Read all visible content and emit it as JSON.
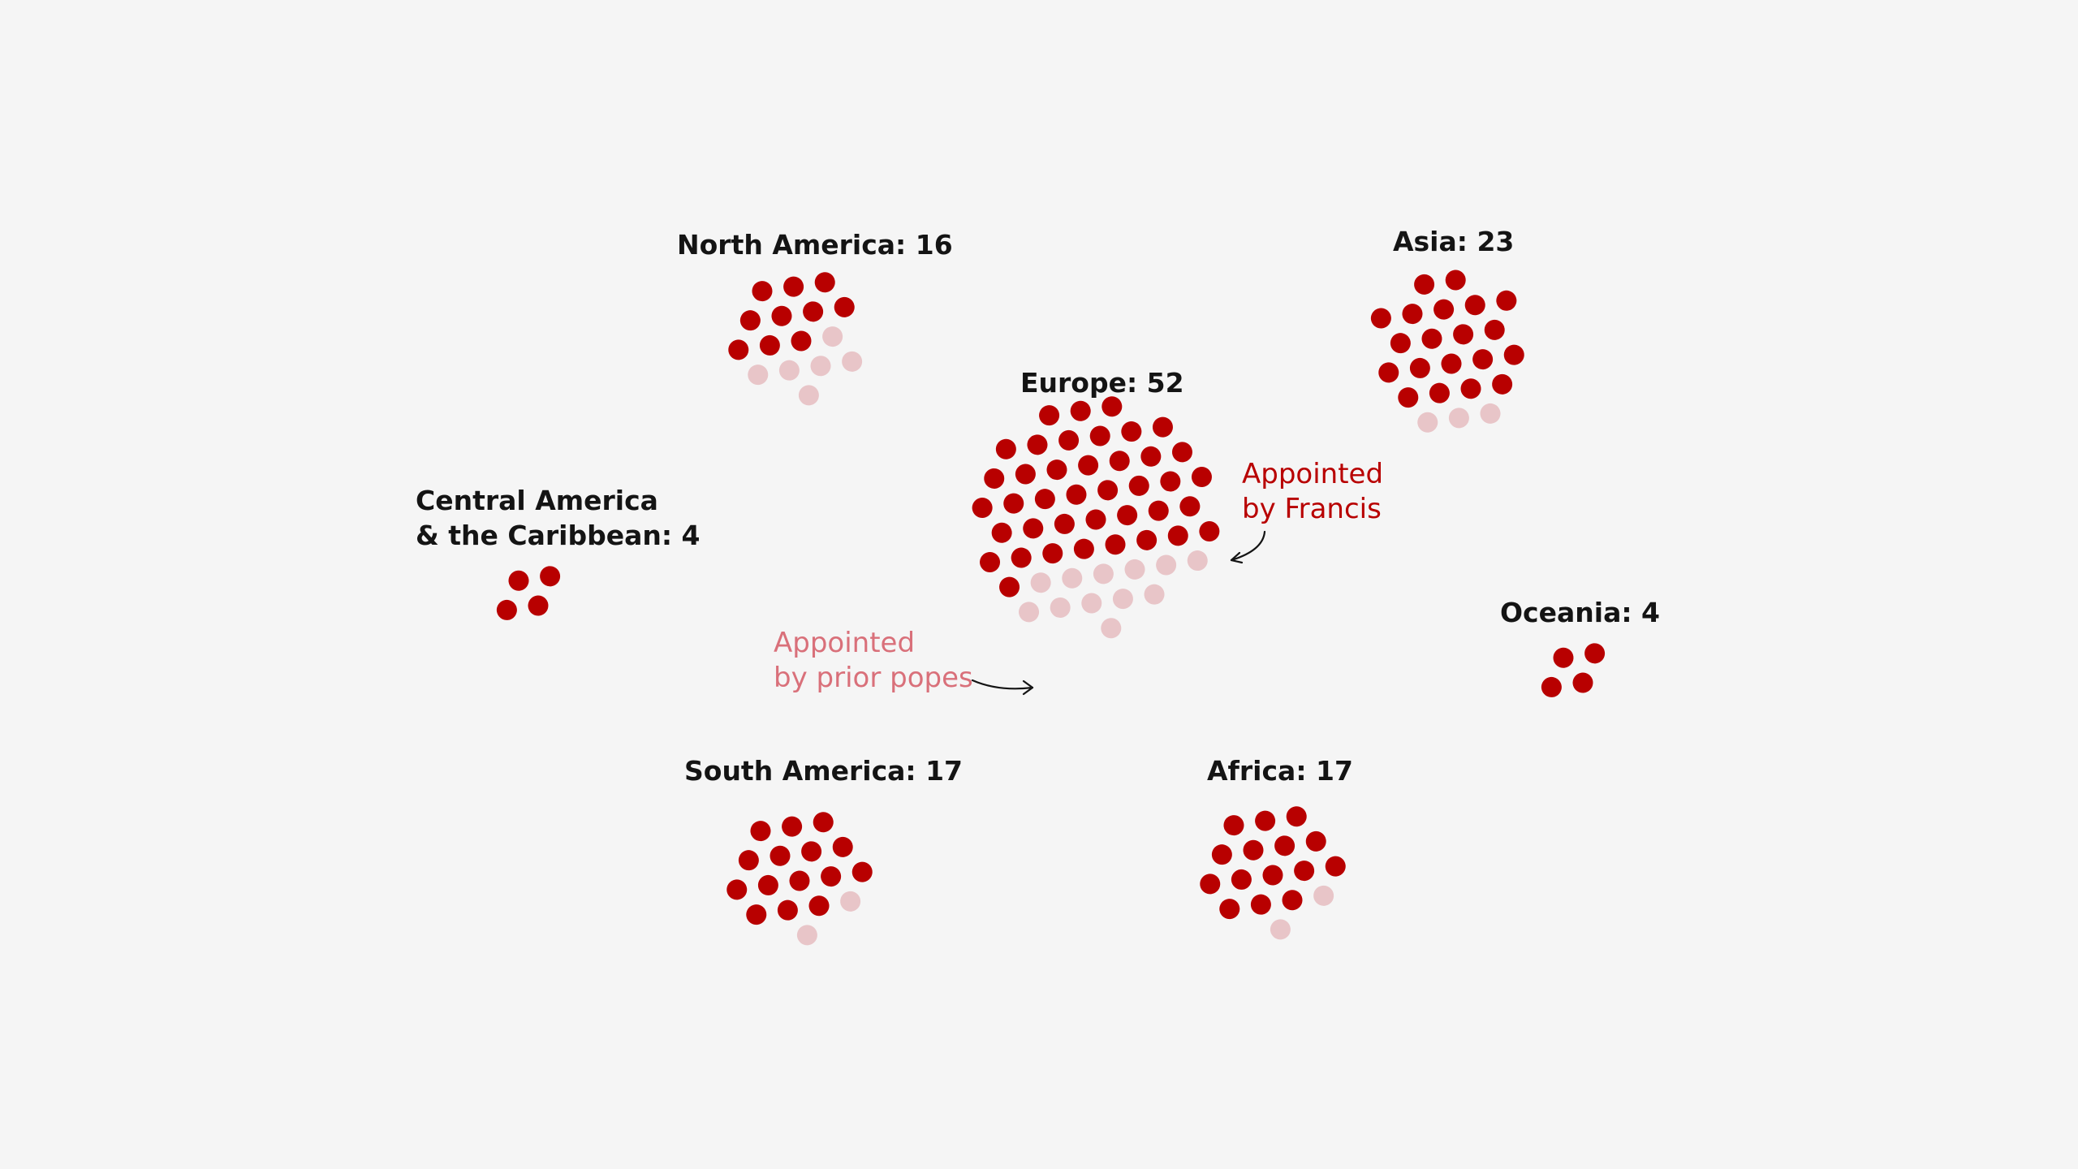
{
  "colors": {
    "background": "#f5f5f5",
    "francis": "#b80000",
    "prior": "#e8c5c8",
    "label": "#141414",
    "annotation_francis": "#b80000",
    "annotation_prior": "#d9707a",
    "arrow": "#141414"
  },
  "chart_data": {
    "type": "dot-cluster",
    "series": [
      {
        "name": "Appointed by Francis",
        "color": "#b80000"
      },
      {
        "name": "Appointed by prior popes",
        "color": "#e8c5c8"
      }
    ],
    "regions": [
      {
        "name": "North America",
        "label": "North America: 16",
        "total": 16,
        "by_francis": 10,
        "by_prior": 6
      },
      {
        "name": "Asia",
        "label": "Asia: 23",
        "total": 23,
        "by_francis": 20,
        "by_prior": 3
      },
      {
        "name": "Europe",
        "label": "Europe: 52",
        "total": 52,
        "by_francis": 40,
        "by_prior": 12
      },
      {
        "name": "Central America & the Caribbean",
        "label_lines": [
          "Central America",
          "& the Caribbean: 4"
        ],
        "total": 4,
        "by_francis": 4,
        "by_prior": 0
      },
      {
        "name": "Oceania",
        "label": "Oceania: 4",
        "total": 4,
        "by_francis": 4,
        "by_prior": 0
      },
      {
        "name": "South America",
        "label": "South America: 17",
        "total": 17,
        "by_francis": 15,
        "by_prior": 2
      },
      {
        "name": "Africa",
        "label": "Africa: 17",
        "total": 17,
        "by_francis": 15,
        "by_prior": 2
      }
    ],
    "annotations": {
      "francis": [
        "Appointed",
        "by Francis"
      ],
      "prior": [
        "Appointed",
        "by prior popes"
      ]
    }
  }
}
